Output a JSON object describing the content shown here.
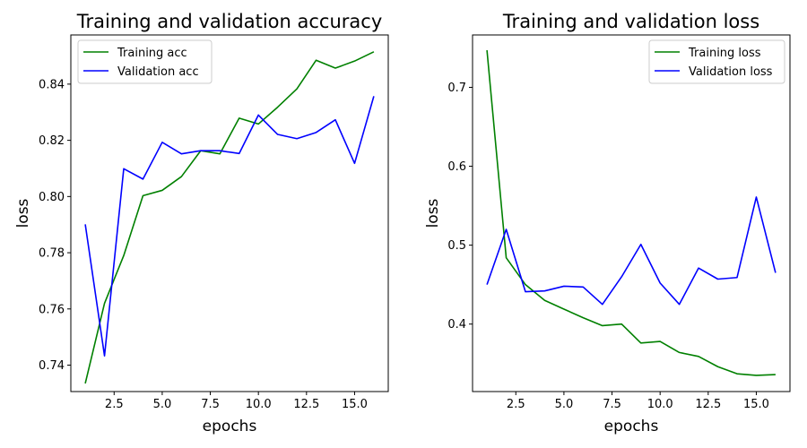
{
  "chart_data": [
    {
      "type": "line",
      "title": "Training and validation accuracy",
      "xlabel": "epochs",
      "ylabel": "loss",
      "xlim": [
        0.25,
        16.75
      ],
      "ylim": [
        0.7306,
        0.8575
      ],
      "xticks": [
        2.5,
        5.0,
        7.5,
        10.0,
        12.5,
        15.0
      ],
      "xtick_labels": [
        "2.5",
        "5.0",
        "7.5",
        "10.0",
        "12.5",
        "15.0"
      ],
      "yticks": [
        0.74,
        0.76,
        0.78,
        0.8,
        0.82,
        0.84
      ],
      "ytick_labels": [
        "0.74",
        "0.76",
        "0.78",
        "0.80",
        "0.82",
        "0.84"
      ],
      "grid": false,
      "legend_position": "upper-left",
      "x": [
        1,
        2,
        3,
        4,
        5,
        6,
        7,
        8,
        9,
        10,
        11,
        12,
        13,
        14,
        15,
        16
      ],
      "series": [
        {
          "name": "Training acc",
          "color": "#008000",
          "values": [
            0.7335,
            0.762,
            0.779,
            0.8003,
            0.8022,
            0.8071,
            0.8163,
            0.8152,
            0.8279,
            0.8258,
            0.8318,
            0.8383,
            0.8485,
            0.8457,
            0.8482,
            0.8515
          ]
        },
        {
          "name": "Validation acc",
          "color": "#0000ff",
          "values": [
            0.7901,
            0.7433,
            0.8099,
            0.8062,
            0.8193,
            0.8152,
            0.8163,
            0.8163,
            0.8153,
            0.829,
            0.8221,
            0.8206,
            0.8228,
            0.8273,
            0.8118,
            0.8357
          ]
        }
      ]
    },
    {
      "type": "line",
      "title": "Training and validation loss",
      "xlabel": "epochs",
      "ylabel": "loss",
      "xlim": [
        0.25,
        16.75
      ],
      "ylim": [
        0.3145,
        0.7664
      ],
      "xticks": [
        2.5,
        5.0,
        7.5,
        10.0,
        12.5,
        15.0
      ],
      "xtick_labels": [
        "2.5",
        "5.0",
        "7.5",
        "10.0",
        "12.5",
        "15.0"
      ],
      "yticks": [
        0.4,
        0.5,
        0.6,
        0.7
      ],
      "ytick_labels": [
        "0.4",
        "0.5",
        "0.6",
        "0.7"
      ],
      "grid": false,
      "legend_position": "upper-right",
      "x": [
        1,
        2,
        3,
        4,
        5,
        6,
        7,
        8,
        9,
        10,
        11,
        12,
        13,
        14,
        15,
        16
      ],
      "series": [
        {
          "name": "Training loss",
          "color": "#008000",
          "values": [
            0.747,
            0.484,
            0.45,
            0.43,
            0.419,
            0.408,
            0.398,
            0.4,
            0.376,
            0.378,
            0.364,
            0.359,
            0.346,
            0.337,
            0.335,
            0.336
          ]
        },
        {
          "name": "Validation loss",
          "color": "#0000ff",
          "values": [
            0.45,
            0.52,
            0.441,
            0.442,
            0.448,
            0.447,
            0.425,
            0.46,
            0.501,
            0.452,
            0.425,
            0.471,
            0.457,
            0.459,
            0.561,
            0.465
          ]
        }
      ]
    }
  ]
}
